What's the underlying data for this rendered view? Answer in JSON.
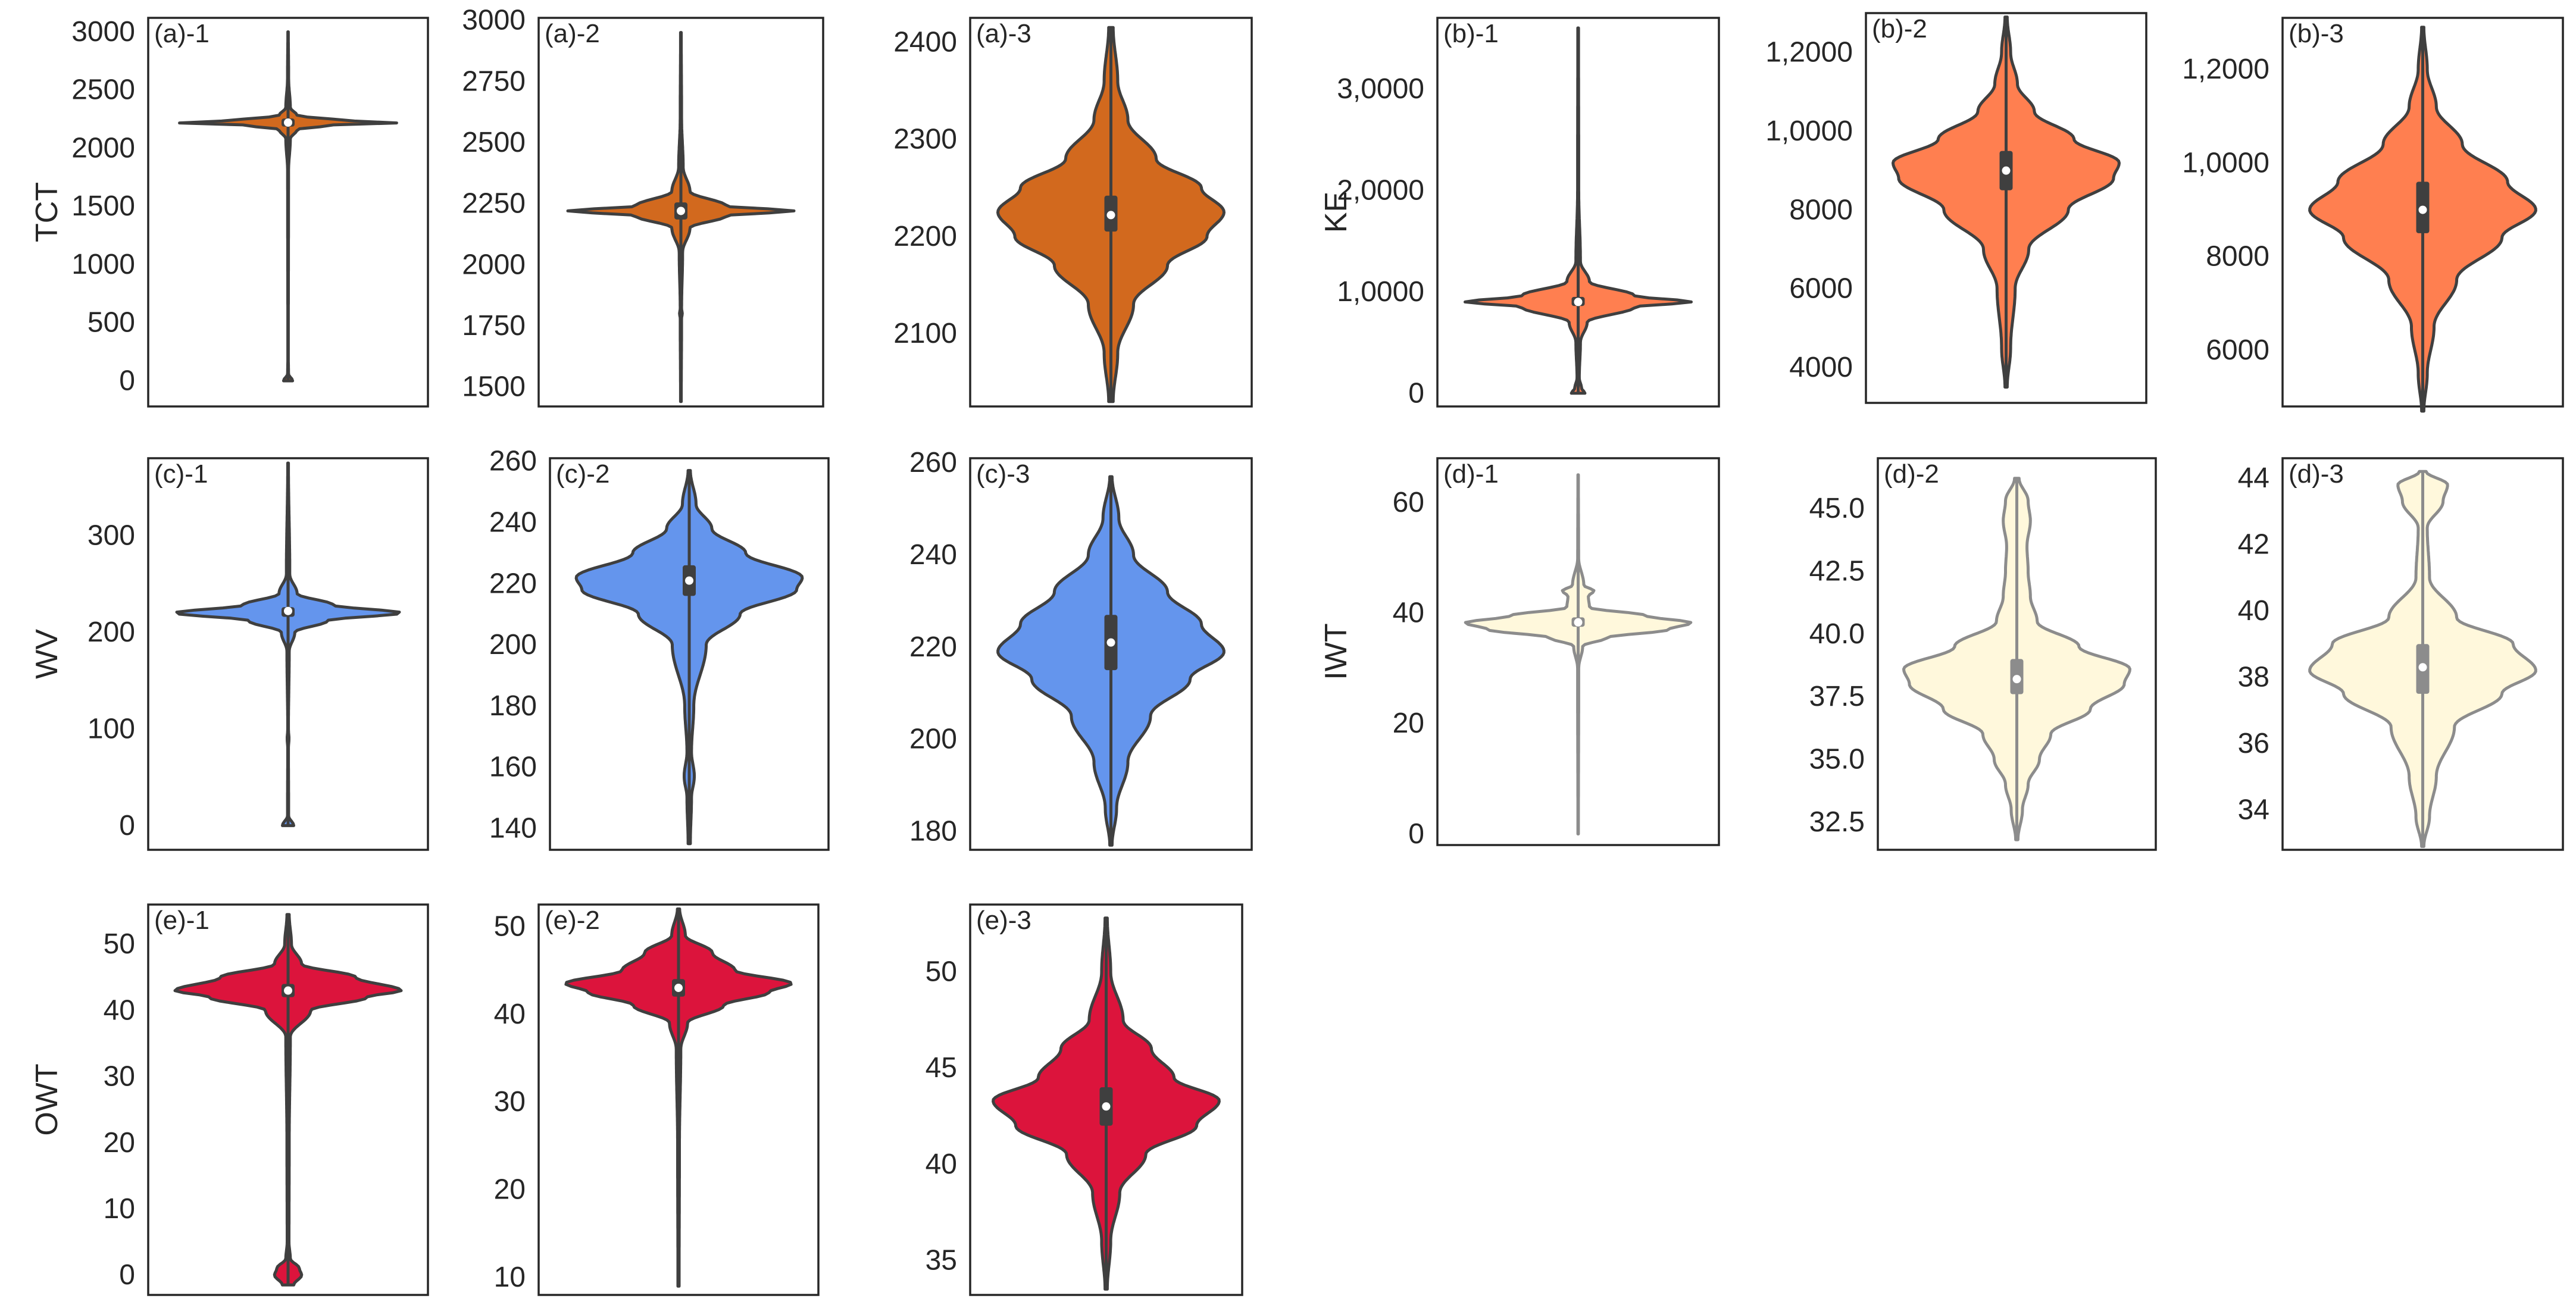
{
  "colors": {
    "tct": "#D2691E",
    "ke": "#FF7F50",
    "wv": "#6495ED",
    "iwt": "#FFF8DC",
    "owt": "#DC143C",
    "violin_edge_dark": "#3f3f3f",
    "violin_edge_light": "#8c8c8c",
    "axis_frame": "#262626"
  },
  "chart_data": [
    {
      "id": "a-1",
      "type": "violin",
      "panel_label": "(a)-1",
      "ylabel": "TCT",
      "color": "tct",
      "edge": "dark",
      "ylim": [
        -220,
        3120
      ],
      "yticks": [
        0,
        500,
        1000,
        1500,
        2000,
        2500,
        3000
      ],
      "yticklabels": [
        "0",
        "500",
        "1000",
        "1500",
        "2000",
        "2500",
        "3000"
      ],
      "data_range": [
        0,
        3000
      ],
      "median": 2220,
      "q1": 2185,
      "q3": 2255,
      "width_scale": 1.0,
      "density": [
        [
          0,
          0.04
        ],
        [
          60,
          0.004
        ],
        [
          200,
          0.002
        ],
        [
          1800,
          0.004
        ],
        [
          2080,
          0.02
        ],
        [
          2160,
          0.08
        ],
        [
          2200,
          0.4
        ],
        [
          2220,
          1.0
        ],
        [
          2240,
          0.45
        ],
        [
          2280,
          0.08
        ],
        [
          2350,
          0.02
        ],
        [
          2600,
          0.005
        ],
        [
          3000,
          0.002
        ]
      ]
    },
    {
      "id": "a-2",
      "type": "violin",
      "panel_label": "(a)-2",
      "ylabel": "",
      "color": "tct",
      "edge": "dark",
      "ylim": [
        1420,
        3010
      ],
      "yticks": [
        1500,
        1750,
        2000,
        2250,
        2500,
        2750,
        3000
      ],
      "yticklabels": [
        "1500",
        "1750",
        "2000",
        "2250",
        "2500",
        "2750",
        "3000"
      ],
      "data_range": [
        1440,
        2950
      ],
      "median": 2220,
      "q1": 2185,
      "q3": 2255,
      "width_scale": 1.0,
      "density": [
        [
          1440,
          0.003
        ],
        [
          1780,
          0.006
        ],
        [
          1800,
          0.012
        ],
        [
          1820,
          0.006
        ],
        [
          2050,
          0.015
        ],
        [
          2150,
          0.08
        ],
        [
          2200,
          0.4
        ],
        [
          2220,
          1.0
        ],
        [
          2240,
          0.4
        ],
        [
          2300,
          0.08
        ],
        [
          2400,
          0.02
        ],
        [
          2600,
          0.006
        ],
        [
          2950,
          0.003
        ]
      ]
    },
    {
      "id": "a-3",
      "type": "violin",
      "panel_label": "(a)-3",
      "ylabel": "",
      "color": "tct",
      "edge": "dark",
      "ylim": [
        2025,
        2425
      ],
      "yticks": [
        2100,
        2200,
        2300,
        2400
      ],
      "yticklabels": [
        "2100",
        "2200",
        "2300",
        "2400"
      ],
      "data_range": [
        2030,
        2415
      ],
      "median": 2222,
      "q1": 2205,
      "q3": 2242,
      "width_scale": 1.0,
      "density": [
        [
          2030,
          0.02
        ],
        [
          2080,
          0.06
        ],
        [
          2130,
          0.2
        ],
        [
          2170,
          0.5
        ],
        [
          2200,
          0.85
        ],
        [
          2225,
          1.0
        ],
        [
          2250,
          0.8
        ],
        [
          2280,
          0.4
        ],
        [
          2320,
          0.15
        ],
        [
          2360,
          0.06
        ],
        [
          2415,
          0.02
        ]
      ]
    },
    {
      "id": "b-1",
      "type": "violin",
      "panel_label": "(b)-1",
      "ylabel": "KE",
      "color": "ke",
      "edge": "dark",
      "ylim": [
        -1300,
        37000
      ],
      "yticks": [
        0,
        10000,
        20000,
        30000
      ],
      "yticklabels": [
        "0",
        "1,0000",
        "2,0000",
        "3,0000"
      ],
      "data_range": [
        0,
        36000
      ],
      "median": 9000,
      "q1": 8600,
      "q3": 9500,
      "width_scale": 1.0,
      "density": [
        [
          0,
          0.06
        ],
        [
          500,
          0.03
        ],
        [
          1500,
          0.01
        ],
        [
          5000,
          0.02
        ],
        [
          7000,
          0.08
        ],
        [
          8500,
          0.5
        ],
        [
          9000,
          1.0
        ],
        [
          9600,
          0.5
        ],
        [
          11000,
          0.1
        ],
        [
          13000,
          0.02
        ],
        [
          20000,
          0.005
        ],
        [
          36000,
          0.003
        ]
      ]
    },
    {
      "id": "b-2",
      "type": "violin",
      "panel_label": "(b)-2",
      "ylabel": "",
      "color": "ke",
      "edge": "dark",
      "ylim": [
        3100,
        13000
      ],
      "yticks": [
        4000,
        6000,
        8000,
        10000,
        12000
      ],
      "yticklabels": [
        "4000",
        "6000",
        "8000",
        "1,0000",
        "1,2000"
      ],
      "data_range": [
        3500,
        12900
      ],
      "median": 9000,
      "q1": 8500,
      "q3": 9500,
      "width_scale": 1.0,
      "density": [
        [
          3500,
          0.01
        ],
        [
          4500,
          0.04
        ],
        [
          6000,
          0.08
        ],
        [
          7000,
          0.2
        ],
        [
          8000,
          0.55
        ],
        [
          8800,
          0.95
        ],
        [
          9200,
          1.0
        ],
        [
          9800,
          0.6
        ],
        [
          10500,
          0.25
        ],
        [
          11200,
          0.1
        ],
        [
          12000,
          0.04
        ],
        [
          12900,
          0.01
        ]
      ]
    },
    {
      "id": "b-3",
      "type": "violin",
      "panel_label": "(b)-3",
      "ylabel": "",
      "color": "ke",
      "edge": "dark",
      "ylim": [
        4800,
        13100
      ],
      "yticks": [
        6000,
        8000,
        10000,
        12000
      ],
      "yticklabels": [
        "6000",
        "8000",
        "1,0000",
        "1,2000"
      ],
      "data_range": [
        4700,
        12900
      ],
      "median": 9000,
      "q1": 8500,
      "q3": 9600,
      "width_scale": 1.0,
      "density": [
        [
          4700,
          0.01
        ],
        [
          5500,
          0.04
        ],
        [
          6500,
          0.1
        ],
        [
          7500,
          0.3
        ],
        [
          8400,
          0.7
        ],
        [
          9000,
          1.0
        ],
        [
          9600,
          0.75
        ],
        [
          10400,
          0.35
        ],
        [
          11200,
          0.12
        ],
        [
          12000,
          0.04
        ],
        [
          12900,
          0.01
        ]
      ]
    },
    {
      "id": "c-1",
      "type": "violin",
      "panel_label": "(c)-1",
      "ylabel": "WV",
      "color": "wv",
      "edge": "dark",
      "ylim": [
        -25,
        380
      ],
      "yticks": [
        0,
        100,
        200,
        300
      ],
      "yticklabels": [
        "0",
        "100",
        "200",
        "300"
      ],
      "data_range": [
        0,
        375
      ],
      "median": 222,
      "q1": 216,
      "q3": 226,
      "width_scale": 1.0,
      "density": [
        [
          0,
          0.05
        ],
        [
          10,
          0.005
        ],
        [
          80,
          0.003
        ],
        [
          90,
          0.008
        ],
        [
          100,
          0.003
        ],
        [
          180,
          0.01
        ],
        [
          200,
          0.06
        ],
        [
          212,
          0.35
        ],
        [
          220,
          1.0
        ],
        [
          228,
          0.4
        ],
        [
          240,
          0.08
        ],
        [
          260,
          0.015
        ],
        [
          375,
          0.003
        ]
      ]
    },
    {
      "id": "c-2",
      "type": "violin",
      "panel_label": "(c)-2",
      "ylabel": "",
      "color": "wv",
      "edge": "dark",
      "ylim": [
        133,
        261
      ],
      "yticks": [
        140,
        160,
        180,
        200,
        220,
        240,
        260
      ],
      "yticklabels": [
        "140",
        "160",
        "180",
        "200",
        "220",
        "240",
        "260"
      ],
      "data_range": [
        135,
        257
      ],
      "median": 221,
      "q1": 216,
      "q3": 226,
      "width_scale": 1.0,
      "density": [
        [
          135,
          0.01
        ],
        [
          150,
          0.02
        ],
        [
          157,
          0.045
        ],
        [
          165,
          0.02
        ],
        [
          180,
          0.04
        ],
        [
          200,
          0.15
        ],
        [
          210,
          0.45
        ],
        [
          218,
          0.95
        ],
        [
          222,
          1.0
        ],
        [
          230,
          0.5
        ],
        [
          238,
          0.2
        ],
        [
          246,
          0.06
        ],
        [
          257,
          0.01
        ]
      ]
    },
    {
      "id": "c-3",
      "type": "violin",
      "panel_label": "(c)-3",
      "ylabel": "",
      "color": "wv",
      "edge": "dark",
      "ylim": [
        176,
        261
      ],
      "yticks": [
        180,
        200,
        220,
        240,
        260
      ],
      "yticklabels": [
        "180",
        "200",
        "220",
        "240",
        "260"
      ],
      "data_range": [
        177,
        257
      ],
      "median": 221,
      "q1": 215,
      "q3": 227,
      "width_scale": 1.0,
      "density": [
        [
          177,
          0.01
        ],
        [
          185,
          0.05
        ],
        [
          195,
          0.15
        ],
        [
          205,
          0.35
        ],
        [
          213,
          0.7
        ],
        [
          219,
          1.0
        ],
        [
          225,
          0.8
        ],
        [
          232,
          0.5
        ],
        [
          240,
          0.2
        ],
        [
          248,
          0.07
        ],
        [
          257,
          0.01
        ]
      ]
    },
    {
      "id": "d-1",
      "type": "violin",
      "panel_label": "(d)-1",
      "ylabel": "IWT",
      "color": "iwt",
      "edge": "light",
      "ylim": [
        -2,
        68
      ],
      "yticks": [
        0,
        20,
        40,
        60
      ],
      "yticklabels": [
        "0",
        "20",
        "40",
        "60"
      ],
      "data_range": [
        0,
        65
      ],
      "median": 38.3,
      "q1": 37.5,
      "q3": 39.2,
      "width_scale": 1.0,
      "density": [
        [
          0,
          0.002
        ],
        [
          30,
          0.005
        ],
        [
          34,
          0.04
        ],
        [
          35.5,
          0.25
        ],
        [
          37,
          0.8
        ],
        [
          38.2,
          1.0
        ],
        [
          39.5,
          0.6
        ],
        [
          41,
          0.1
        ],
        [
          43,
          0.09
        ],
        [
          44,
          0.14
        ],
        [
          45,
          0.05
        ],
        [
          50,
          0.004
        ],
        [
          65,
          0.002
        ]
      ]
    },
    {
      "id": "d-2",
      "type": "violin",
      "panel_label": "(d)-2",
      "ylabel": "",
      "color": "iwt",
      "edge": "light",
      "ylim": [
        31.4,
        47.0
      ],
      "yticks": [
        32.5,
        35.0,
        37.5,
        40.0,
        42.5,
        45.0
      ],
      "yticklabels": [
        "32.5",
        "35.0",
        "37.5",
        "40.0",
        "42.5",
        "45.0"
      ],
      "data_range": [
        31.8,
        46.2
      ],
      "median": 38.2,
      "q1": 37.6,
      "q3": 39.0,
      "width_scale": 1.0,
      "density": [
        [
          31.8,
          0.01
        ],
        [
          33.0,
          0.05
        ],
        [
          34.0,
          0.1
        ],
        [
          35.0,
          0.2
        ],
        [
          36.0,
          0.3
        ],
        [
          37.0,
          0.65
        ],
        [
          38.0,
          0.95
        ],
        [
          38.6,
          1.0
        ],
        [
          39.5,
          0.55
        ],
        [
          40.5,
          0.18
        ],
        [
          41.5,
          0.12
        ],
        [
          42.5,
          0.1
        ],
        [
          43.5,
          0.09
        ],
        [
          44.5,
          0.12
        ],
        [
          45.3,
          0.1
        ],
        [
          46.2,
          0.02
        ]
      ]
    },
    {
      "id": "d-3",
      "type": "violin",
      "panel_label": "(d)-3",
      "ylabel": "",
      "color": "iwt",
      "edge": "light",
      "ylim": [
        32.8,
        44.6
      ],
      "yticks": [
        34,
        36,
        38,
        40,
        42,
        44
      ],
      "yticklabels": [
        "34",
        "36",
        "38",
        "40",
        "42",
        "44"
      ],
      "data_range": [
        32.9,
        44.2
      ],
      "median": 38.3,
      "q1": 37.5,
      "q3": 39.0,
      "width_scale": 1.0,
      "density": [
        [
          32.9,
          0.01
        ],
        [
          33.8,
          0.06
        ],
        [
          35.0,
          0.12
        ],
        [
          36.5,
          0.28
        ],
        [
          37.5,
          0.7
        ],
        [
          38.2,
          1.0
        ],
        [
          39.0,
          0.8
        ],
        [
          39.8,
          0.3
        ],
        [
          41.0,
          0.06
        ],
        [
          42.5,
          0.04
        ],
        [
          43.3,
          0.18
        ],
        [
          43.8,
          0.22
        ],
        [
          44.2,
          0.03
        ]
      ]
    },
    {
      "id": "e-1",
      "type": "violin",
      "panel_label": "(e)-1",
      "ylabel": "OWT",
      "color": "owt",
      "edge": "dark",
      "ylim": [
        -3,
        56
      ],
      "yticks": [
        0,
        10,
        20,
        30,
        40,
        50
      ],
      "yticklabels": [
        "0",
        "10",
        "20",
        "30",
        "40",
        "50"
      ],
      "data_range": [
        -1.5,
        54.5
      ],
      "median": 43,
      "q1": 42,
      "q3": 44,
      "width_scale": 1.0,
      "density": [
        [
          -1.5,
          0.05
        ],
        [
          0,
          0.12
        ],
        [
          1,
          0.1
        ],
        [
          2.5,
          0.02
        ],
        [
          5,
          0.008
        ],
        [
          20,
          0.01
        ],
        [
          36,
          0.02
        ],
        [
          40,
          0.2
        ],
        [
          42,
          0.7
        ],
        [
          43,
          1.0
        ],
        [
          45,
          0.6
        ],
        [
          47,
          0.12
        ],
        [
          50,
          0.03
        ],
        [
          54.5,
          0.01
        ]
      ]
    },
    {
      "id": "e-2",
      "type": "violin",
      "panel_label": "(e)-2",
      "ylabel": "",
      "color": "owt",
      "edge": "dark",
      "ylim": [
        8,
        52.5
      ],
      "yticks": [
        10,
        20,
        30,
        40,
        50
      ],
      "yticklabels": [
        "10",
        "20",
        "30",
        "40",
        "50"
      ],
      "data_range": [
        9,
        52
      ],
      "median": 43,
      "q1": 42,
      "q3": 44,
      "width_scale": 1.0,
      "density": [
        [
          9,
          0.005
        ],
        [
          25,
          0.008
        ],
        [
          36,
          0.02
        ],
        [
          39,
          0.08
        ],
        [
          41,
          0.4
        ],
        [
          42.5,
          0.8
        ],
        [
          43.5,
          1.0
        ],
        [
          45,
          0.5
        ],
        [
          47,
          0.3
        ],
        [
          49,
          0.06
        ],
        [
          52,
          0.01
        ]
      ]
    },
    {
      "id": "e-3",
      "type": "violin",
      "panel_label": "(e)-3",
      "ylabel": "",
      "color": "owt",
      "edge": "dark",
      "ylim": [
        33.2,
        53.5
      ],
      "yticks": [
        35,
        40,
        45,
        50
      ],
      "yticklabels": [
        "35",
        "40",
        "45",
        "50"
      ],
      "data_range": [
        33.5,
        52.8
      ],
      "median": 43,
      "q1": 42,
      "q3": 44,
      "width_scale": 1.0,
      "density": [
        [
          33.5,
          0.01
        ],
        [
          36,
          0.04
        ],
        [
          38.5,
          0.12
        ],
        [
          40.5,
          0.35
        ],
        [
          42,
          0.8
        ],
        [
          43.3,
          1.0
        ],
        [
          44.5,
          0.6
        ],
        [
          46,
          0.4
        ],
        [
          47.5,
          0.15
        ],
        [
          50,
          0.04
        ],
        [
          52.8,
          0.01
        ]
      ]
    }
  ]
}
